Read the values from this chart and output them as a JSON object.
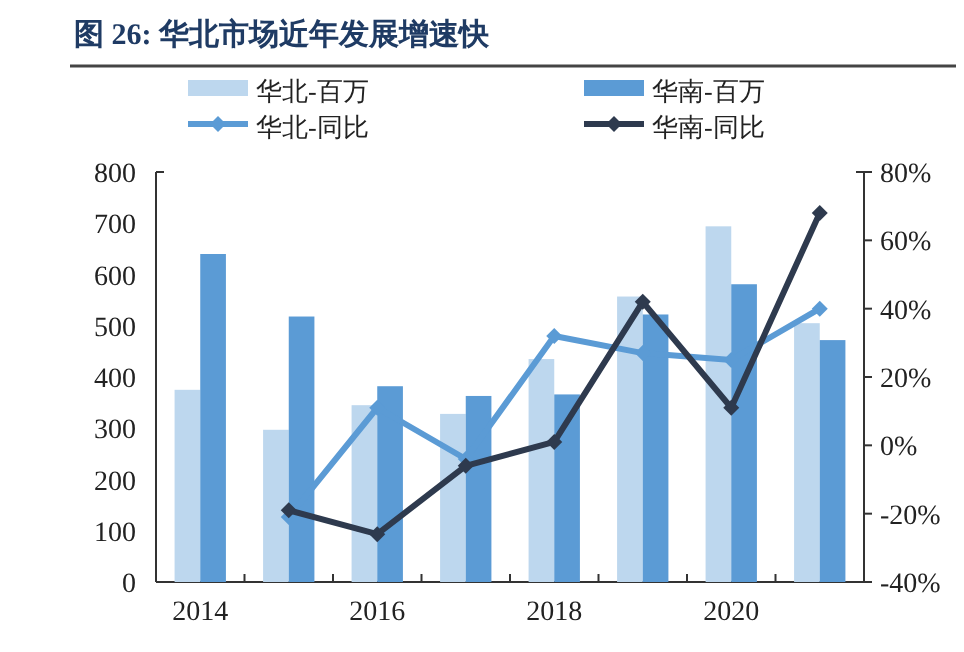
{
  "chart_data": {
    "type": "bar",
    "title": "图 26: 华北市场近年发展增速快",
    "categories": [
      "2014",
      null,
      "2016",
      null,
      "2018",
      null,
      "2020",
      null
    ],
    "series": [
      {
        "name": "华北-百万",
        "color": "#bdd7ee",
        "values": [
          375,
          297,
          345,
          328,
          435,
          557,
          694,
          505
        ]
      },
      {
        "name": "华南-百万",
        "color": "#5b9bd5",
        "values": [
          640,
          518,
          382,
          363,
          366,
          522,
          581,
          472
        ]
      },
      {
        "name": "华北-同比",
        "type": "line",
        "axis": "y2",
        "color": "#5b9bd5",
        "values": [
          null,
          -21,
          11,
          -4,
          32,
          27,
          25,
          40
        ]
      },
      {
        "name": "华南-同比",
        "type": "line",
        "axis": "y2",
        "color": "#2e3a4e",
        "values": [
          null,
          -19,
          -26,
          -6,
          1,
          42,
          11,
          68
        ]
      }
    ],
    "ylim": [
      0,
      800
    ],
    "yticks": [
      0,
      100,
      200,
      300,
      400,
      500,
      600,
      700,
      800
    ],
    "y2lim": [
      -40,
      80
    ],
    "y2ticks": [
      {
        "value": -40,
        "label": "-40%"
      },
      {
        "value": -20,
        "label": "-20%"
      },
      {
        "value": 0,
        "label": "0%"
      },
      {
        "value": 20,
        "label": "20%"
      },
      {
        "value": 40,
        "label": "40%"
      },
      {
        "value": 60,
        "label": "60%"
      },
      {
        "value": 80,
        "label": "80%"
      }
    ],
    "marker": "diamond",
    "legend": "top",
    "grid": false
  }
}
